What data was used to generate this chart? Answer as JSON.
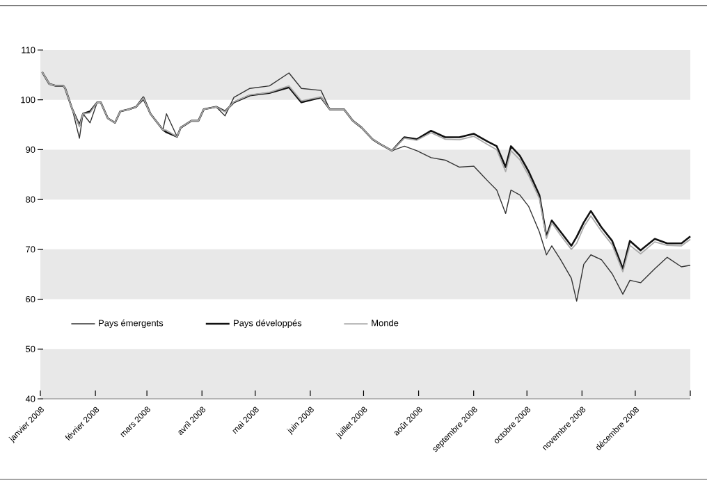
{
  "chart_data": {
    "type": "line",
    "xlim": [
      "2008-01-01",
      "2009-01-01"
    ],
    "xticks": [
      {
        "value": "2008-01-01",
        "label": "janvier 2008"
      },
      {
        "value": "2008-02-01",
        "label": "février 2008"
      },
      {
        "value": "2008-03-01",
        "label": "mars 2008"
      },
      {
        "value": "2008-04-01",
        "label": "avril 2008"
      },
      {
        "value": "2008-05-01",
        "label": "mai 2008"
      },
      {
        "value": "2008-06-01",
        "label": "juin 2008"
      },
      {
        "value": "2008-07-01",
        "label": "juillet 2008"
      },
      {
        "value": "2008-08-01",
        "label": "août 2008"
      },
      {
        "value": "2008-09-01",
        "label": "septembre 2008"
      },
      {
        "value": "2008-10-01",
        "label": "octobre 2008"
      },
      {
        "value": "2008-11-01",
        "label": "novembre 2008"
      },
      {
        "value": "2008-12-01",
        "label": "décembre 2008"
      },
      {
        "value": "2009-01-01",
        "label": null
      }
    ],
    "ylim": [
      40,
      110
    ],
    "yticks": [
      40,
      50,
      60,
      70,
      80,
      90,
      100,
      110
    ],
    "bands": [
      {
        "axis": "y",
        "from": 40,
        "to": 50,
        "color": "#e8e8e8"
      },
      {
        "axis": "y",
        "from": 60,
        "to": 70,
        "color": "#e8e8e8"
      },
      {
        "axis": "y",
        "from": 80,
        "to": 90,
        "color": "#e8e8e8"
      },
      {
        "axis": "y",
        "from": 100,
        "to": 110,
        "color": "#e8e8e8"
      }
    ],
    "legend": "bottom left",
    "line_style": "solid",
    "marker": "none",
    "grid": false,
    "x": [
      "2008-01-02",
      "2008-01-06",
      "2008-01-10",
      "2008-01-14",
      "2008-01-15",
      "2008-01-19",
      "2008-01-23",
      "2008-01-25",
      "2008-01-29",
      "2008-02-02",
      "2008-02-04",
      "2008-02-08",
      "2008-02-12",
      "2008-02-15",
      "2008-02-20",
      "2008-02-24",
      "2008-02-28",
      "2008-03-03",
      "2008-03-10",
      "2008-03-12",
      "2008-03-18",
      "2008-03-20",
      "2008-03-26",
      "2008-03-30",
      "2008-04-02",
      "2008-04-09",
      "2008-04-14",
      "2008-04-19",
      "2008-04-28",
      "2008-05-09",
      "2008-05-20",
      "2008-05-27",
      "2008-06-07",
      "2008-06-12",
      "2008-06-20",
      "2008-06-25",
      "2008-06-30",
      "2008-07-06",
      "2008-07-10",
      "2008-07-17",
      "2008-07-24",
      "2008-07-31",
      "2008-08-08",
      "2008-08-16",
      "2008-08-24",
      "2008-09-01",
      "2008-09-09",
      "2008-09-14",
      "2008-09-19",
      "2008-09-22",
      "2008-09-27",
      "2008-10-02",
      "2008-10-08",
      "2008-10-12",
      "2008-10-15",
      "2008-10-20",
      "2008-10-26",
      "2008-10-29",
      "2008-11-02",
      "2008-11-06",
      "2008-11-12",
      "2008-11-18",
      "2008-11-24",
      "2008-11-28",
      "2008-12-04",
      "2008-12-12",
      "2008-12-19",
      "2008-12-27",
      "2009-01-01"
    ],
    "series": [
      {
        "name": "Pays émergents",
        "color": "#333333",
        "values": [
          105.6,
          103.2,
          102.8,
          102.8,
          102.3,
          98.1,
          92.3,
          97.2,
          95.4,
          99.5,
          99.5,
          96.3,
          95.4,
          97.7,
          98.1,
          98.6,
          100,
          97.2,
          94,
          97.2,
          92.6,
          94.4,
          95.8,
          95.8,
          98.1,
          98.6,
          96.8,
          100.5,
          102.3,
          102.8,
          105.4,
          102.3,
          101.9,
          98.1,
          98.1,
          95.8,
          94.4,
          92.1,
          91.2,
          89.8,
          90.7,
          89.8,
          88.4,
          87.9,
          86.5,
          86.7,
          83.7,
          81.9,
          77.2,
          81.9,
          80.9,
          78.6,
          73.5,
          68.9,
          70.7,
          67.9,
          64.2,
          59.6,
          67,
          68.9,
          67.9,
          65.1,
          61,
          63.8,
          63.3,
          66.1,
          68.4,
          66.5,
          66.8
        ]
      },
      {
        "name": "Pays développés",
        "color": "#111111",
        "values": [
          105.6,
          103.2,
          102.8,
          102.8,
          102.3,
          98.1,
          94.9,
          97.2,
          97.7,
          99.5,
          99.5,
          96.3,
          95.4,
          97.7,
          98.1,
          98.6,
          100.5,
          97.2,
          94,
          93.5,
          92.6,
          94.4,
          95.8,
          95.8,
          98.1,
          98.6,
          97.7,
          99.5,
          100.9,
          101.4,
          102.5,
          99.5,
          100.5,
          98.1,
          98.1,
          95.8,
          94.4,
          92.1,
          91.2,
          89.8,
          92.5,
          92.1,
          93.8,
          92.5,
          92.5,
          93.2,
          91.6,
          90.7,
          86.5,
          90.7,
          88.8,
          85.6,
          80.9,
          72.6,
          75.8,
          73.5,
          70.7,
          72.5,
          75.4,
          77.7,
          74.4,
          71.7,
          66.1,
          71.7,
          69.8,
          72.1,
          71.2,
          71.2,
          72.6
        ]
      },
      {
        "name": "Monde",
        "color": "#aaaaaa",
        "values": [
          105.6,
          103.2,
          102.8,
          102.8,
          102.3,
          98.1,
          94.6,
          97.2,
          97.4,
          99.5,
          99.5,
          96.3,
          95.4,
          97.7,
          98.1,
          98.6,
          100.4,
          97.2,
          94,
          93.9,
          92.6,
          94.4,
          95.8,
          95.8,
          98.1,
          98.6,
          97.6,
          99.6,
          101,
          101.5,
          102.8,
          99.8,
          100.6,
          98.1,
          98.1,
          95.8,
          94.4,
          92.1,
          91.2,
          89.8,
          92.3,
          91.9,
          93.4,
          92.1,
          92,
          92.7,
          91,
          90,
          85.6,
          89.8,
          88,
          84.8,
          80.2,
          72.2,
          75.3,
          72.8,
          70,
          71.2,
          74.5,
          76.7,
          73.6,
          70.9,
          65.5,
          70.8,
          69.1,
          71.5,
          70.8,
          70.7,
          72
        ]
      }
    ]
  }
}
